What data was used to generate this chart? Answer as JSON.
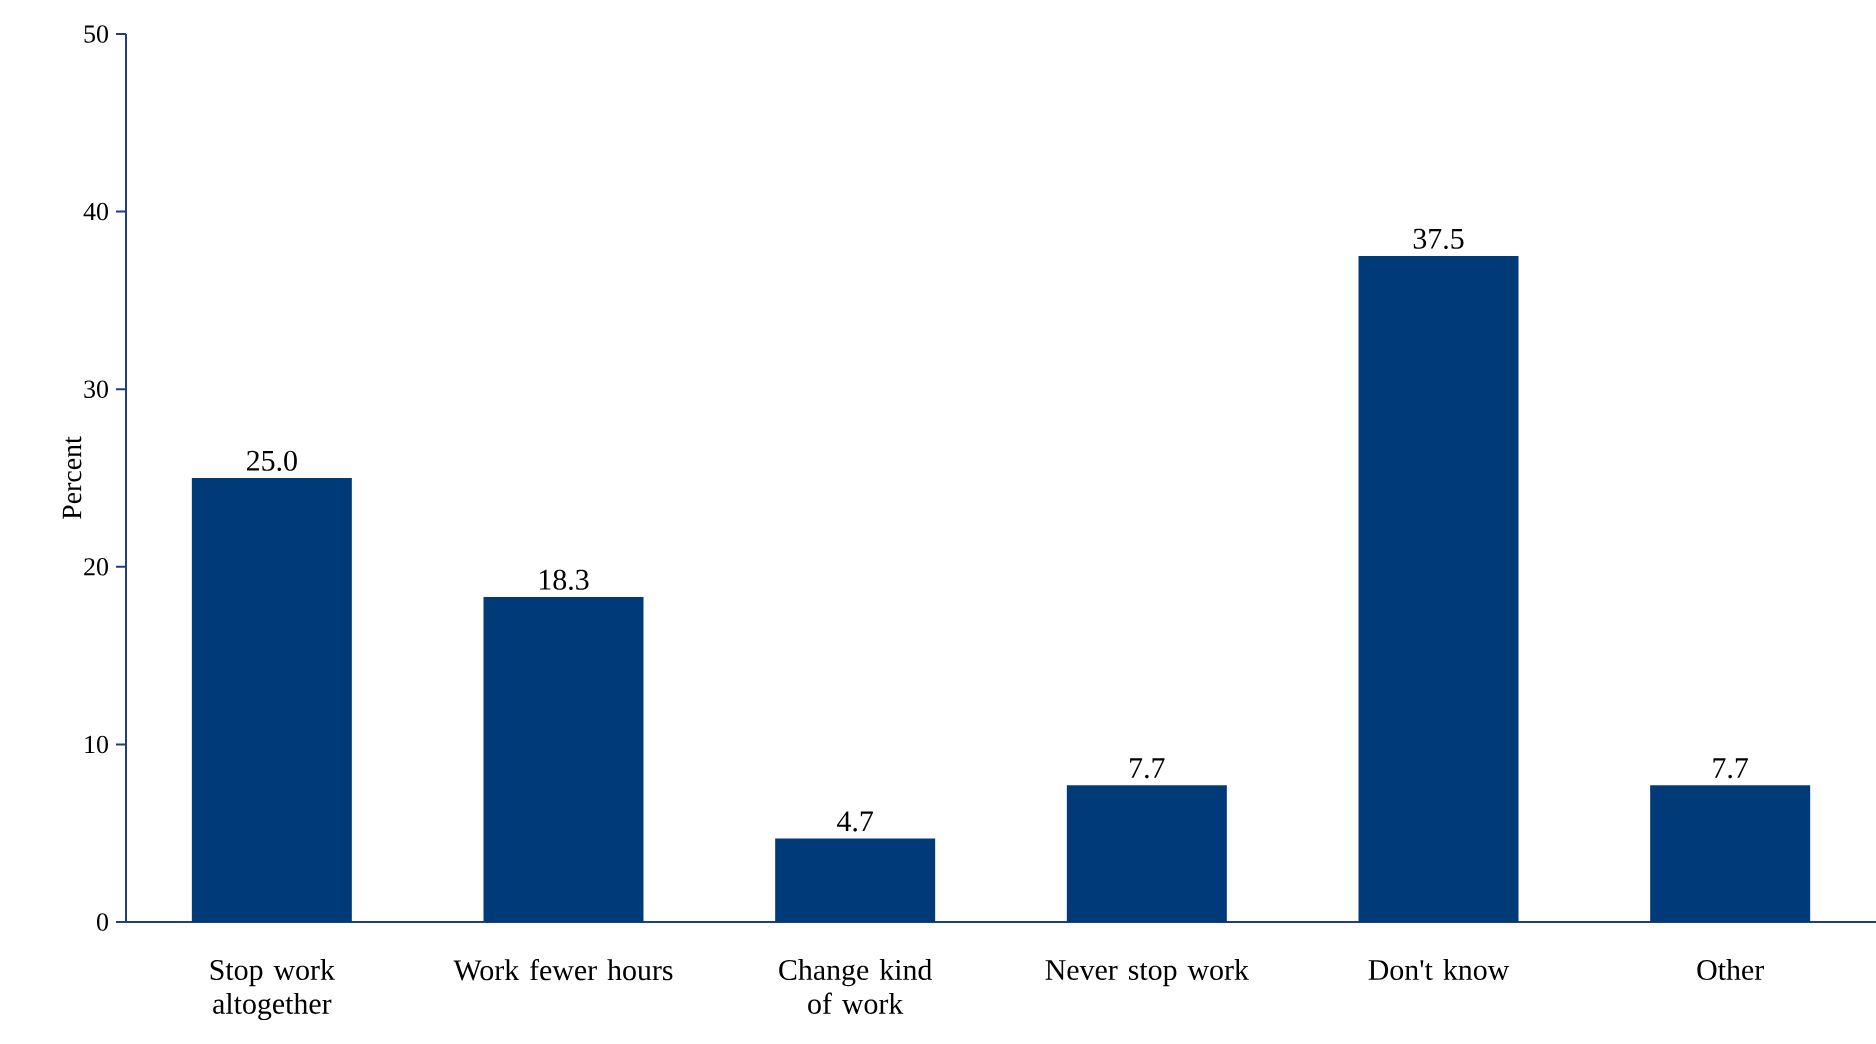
{
  "chart_data": {
    "type": "bar",
    "ylabel": "Percent",
    "categories": [
      "Stop work altogether",
      "Work fewer hours",
      "Change kind of work",
      "Never stop work",
      "Don't know",
      "Other"
    ],
    "values": [
      25.0,
      18.3,
      4.7,
      7.7,
      37.5,
      7.7
    ],
    "value_labels": [
      "25.0",
      "18.3",
      "4.7",
      "7.7",
      "37.5",
      "7.7"
    ],
    "color": "#003a78",
    "ylim": [
      0,
      50
    ],
    "yticks": [
      0,
      10,
      20,
      30,
      40,
      50
    ],
    "grid": false
  }
}
